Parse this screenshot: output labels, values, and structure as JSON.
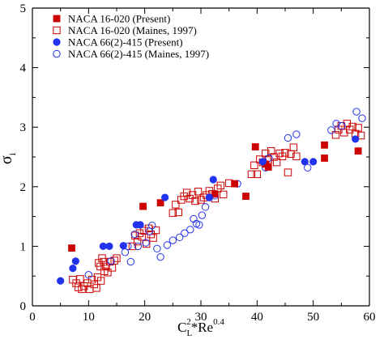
{
  "chart_data": {
    "type": "scatter",
    "title": "",
    "xlabel": {
      "main": "C",
      "sub": "L",
      "sup": "2",
      "tail": "*Re",
      "tail_sup": "0.4"
    },
    "ylabel": {
      "main": "σ",
      "sub": "i"
    },
    "xlim": [
      0,
      60
    ],
    "ylim": [
      0,
      5
    ],
    "xticks": [
      "0",
      "10",
      "20",
      "30",
      "40",
      "50",
      "60"
    ],
    "yticks": [
      "0",
      "1",
      "2",
      "3",
      "4",
      "5"
    ],
    "legend_position": "top-left",
    "grid": false,
    "series": [
      {
        "name": "NACA 16-020 (Present)",
        "marker": "square",
        "filled": true,
        "color": "#cc0000",
        "points": [
          [
            7,
            0.97
          ],
          [
            19.7,
            1.67
          ],
          [
            22.8,
            1.73
          ],
          [
            32.5,
            1.88
          ],
          [
            36,
            2.05
          ],
          [
            38,
            1.84
          ],
          [
            39.7,
            2.67
          ],
          [
            41.5,
            2.38
          ],
          [
            42,
            2.33
          ],
          [
            52,
            2.7
          ],
          [
            52,
            2.48
          ],
          [
            58,
            2.6
          ]
        ]
      },
      {
        "name": "NACA 16-020 (Maines, 1997)",
        "marker": "square",
        "filled": false,
        "color": "#cc0000",
        "points": [
          [
            7.2,
            0.44
          ],
          [
            7.8,
            0.38
          ],
          [
            8.2,
            0.31
          ],
          [
            8.5,
            0.45
          ],
          [
            8.8,
            0.28
          ],
          [
            9.2,
            0.33
          ],
          [
            9.8,
            0.38
          ],
          [
            10.2,
            0.28
          ],
          [
            10.6,
            0.44
          ],
          [
            11,
            0.36
          ],
          [
            11.4,
            0.3
          ],
          [
            11.8,
            0.72
          ],
          [
            12.1,
            0.66
          ],
          [
            12.4,
            0.8
          ],
          [
            12.7,
            0.74
          ],
          [
            13.1,
            0.66
          ],
          [
            13.4,
            0.56
          ],
          [
            13.8,
            0.74
          ],
          [
            14.2,
            0.64
          ],
          [
            14.6,
            0.76
          ],
          [
            15,
            0.8
          ],
          [
            11.6,
            0.48
          ],
          [
            12.2,
            0.42
          ],
          [
            12.8,
            0.58
          ],
          [
            17.8,
            1.0
          ],
          [
            18.3,
            1.18
          ],
          [
            18.7,
            1.08
          ],
          [
            19.1,
            1.22
          ],
          [
            19.5,
            1.16
          ],
          [
            19.9,
            1.26
          ],
          [
            20.3,
            1.04
          ],
          [
            20.7,
            1.3
          ],
          [
            21.1,
            1.2
          ],
          [
            21.5,
            1.14
          ],
          [
            22,
            1.27
          ],
          [
            25,
            1.56
          ],
          [
            25.5,
            1.7
          ],
          [
            26,
            1.57
          ],
          [
            26.5,
            1.78
          ],
          [
            27,
            1.84
          ],
          [
            27.5,
            1.9
          ],
          [
            28,
            1.8
          ],
          [
            28.5,
            1.86
          ],
          [
            29,
            1.76
          ],
          [
            29.5,
            1.92
          ],
          [
            30,
            1.78
          ],
          [
            30.5,
            1.82
          ],
          [
            31,
            1.86
          ],
          [
            31.5,
            1.93
          ],
          [
            32,
            1.88
          ],
          [
            32.5,
            1.8
          ],
          [
            33,
            1.97
          ],
          [
            33.5,
            2.02
          ],
          [
            34,
            1.87
          ],
          [
            35,
            2.06
          ],
          [
            39,
            2.21
          ],
          [
            39.5,
            2.36
          ],
          [
            40,
            2.21
          ],
          [
            40.5,
            2.46
          ],
          [
            41,
            2.41
          ],
          [
            41.5,
            2.56
          ],
          [
            42,
            2.46
          ],
          [
            42.5,
            2.6
          ],
          [
            43,
            2.5
          ],
          [
            43.5,
            2.41
          ],
          [
            44,
            2.56
          ],
          [
            44.5,
            2.51
          ],
          [
            45,
            2.57
          ],
          [
            45.5,
            2.24
          ],
          [
            46,
            2.55
          ],
          [
            46.5,
            2.66
          ],
          [
            47,
            2.51
          ],
          [
            54,
            2.87
          ],
          [
            54.5,
            2.96
          ],
          [
            55,
            3.02
          ],
          [
            55.5,
            2.91
          ],
          [
            56,
            3.06
          ],
          [
            56.5,
            2.96
          ],
          [
            57,
            3.01
          ],
          [
            57.5,
            2.89
          ],
          [
            58,
            2.99
          ],
          [
            58.5,
            2.86
          ]
        ]
      },
      {
        "name": "NACA 66(2)-415 (Present)",
        "marker": "circle",
        "filled": true,
        "color": "#2233ee",
        "points": [
          [
            5,
            0.42
          ],
          [
            7.2,
            0.63
          ],
          [
            7.7,
            0.75
          ],
          [
            12.6,
            1.0
          ],
          [
            13.7,
            1.0
          ],
          [
            16.2,
            1.01
          ],
          [
            18.5,
            1.36
          ],
          [
            19.2,
            1.36
          ],
          [
            23.6,
            1.82
          ],
          [
            31.5,
            1.82
          ],
          [
            32.2,
            2.12
          ],
          [
            41,
            2.42
          ],
          [
            48.5,
            2.42
          ],
          [
            50,
            2.42
          ],
          [
            57.5,
            2.8
          ]
        ]
      },
      {
        "name": "NACA 66(2)-415 (Maines, 1997)",
        "marker": "circle",
        "filled": false,
        "color": "#2233ee",
        "points": [
          [
            10,
            0.52
          ],
          [
            14,
            0.75
          ],
          [
            16.5,
            0.9
          ],
          [
            17,
            1.0
          ],
          [
            17.5,
            0.74
          ],
          [
            18.2,
            1.2
          ],
          [
            18.8,
            1.0
          ],
          [
            20.2,
            1.06
          ],
          [
            20.8,
            1.25
          ],
          [
            21.3,
            1.35
          ],
          [
            22.2,
            0.96
          ],
          [
            22.8,
            0.82
          ],
          [
            24,
            1.02
          ],
          [
            25,
            1.1
          ],
          [
            26.2,
            1.15
          ],
          [
            27.1,
            1.22
          ],
          [
            28.1,
            1.28
          ],
          [
            28.7,
            1.46
          ],
          [
            29.2,
            1.38
          ],
          [
            29.7,
            1.36
          ],
          [
            30.2,
            1.52
          ],
          [
            30.8,
            1.66
          ],
          [
            31.5,
            1.82
          ],
          [
            32.5,
            1.85
          ],
          [
            36.5,
            2.05
          ],
          [
            41.5,
            2.32
          ],
          [
            42.1,
            2.48
          ],
          [
            45.5,
            2.82
          ],
          [
            47,
            2.88
          ],
          [
            49,
            2.32
          ],
          [
            53.2,
            2.95
          ],
          [
            54.1,
            3.06
          ],
          [
            55.1,
            3.02
          ],
          [
            57.7,
            3.26
          ],
          [
            58.7,
            3.15
          ]
        ]
      }
    ]
  }
}
